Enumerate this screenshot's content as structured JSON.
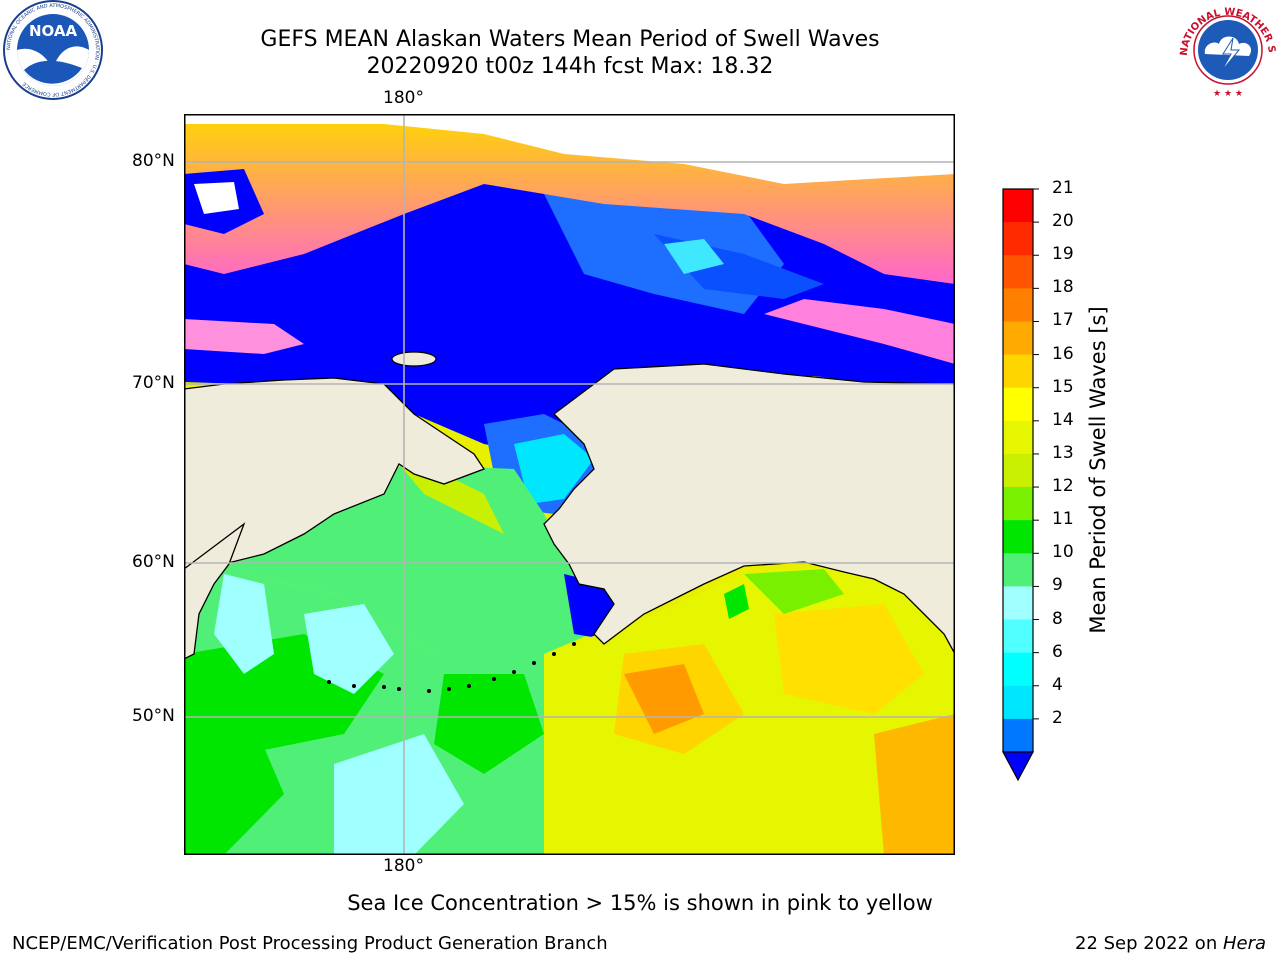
{
  "header": {
    "title_line1": "GEFS MEAN Alaskan Waters Mean Period of Swell Waves",
    "title_line2": "20220920 t00z 144h fcst   Max: 18.32"
  },
  "logos": {
    "left": {
      "text": "NOAA",
      "ring_text": "NATIONAL OCEANIC AND ATMOSPHERIC ADMINISTRATION · U.S. DEPARTMENT OF COMMERCE"
    },
    "right": {
      "ring_text": "NATIONAL WEATHER SERVICE"
    }
  },
  "map": {
    "lon_label_top": "180°",
    "lon_label_bottom": "180°",
    "lat_labels": [
      "80°N",
      "70°N",
      "60°N",
      "50°N"
    ],
    "colors": {
      "land": "#efecdc",
      "ocean_deep": "#0000ff",
      "coast": "#000000",
      "grid": "#b4b4b4"
    }
  },
  "colorbar": {
    "label": "Mean Period of Swell Waves [s]",
    "ticks": [
      "21",
      "20",
      "19",
      "18",
      "17",
      "16",
      "15",
      "14",
      "13",
      "12",
      "11",
      "10",
      "9",
      "8",
      "6",
      "4",
      "2"
    ],
    "colors": [
      "#ff0000",
      "#ff2a00",
      "#ff5500",
      "#ff7f00",
      "#ffaa00",
      "#ffd500",
      "#ffff00",
      "#e6f500",
      "#c8f000",
      "#78f000",
      "#00e600",
      "#50f078",
      "#a0ffff",
      "#50ffff",
      "#00ffff",
      "#00e6ff",
      "#0078ff"
    ],
    "extend_color": "#0000ff"
  },
  "footer": {
    "caption": "Sea Ice Concentration > 15% is shown in pink to yellow",
    "left": "NCEP/EMC/Verification Post Processing Product Generation Branch",
    "right_prefix": "22 Sep 2022 on ",
    "right_host": "Hera"
  }
}
